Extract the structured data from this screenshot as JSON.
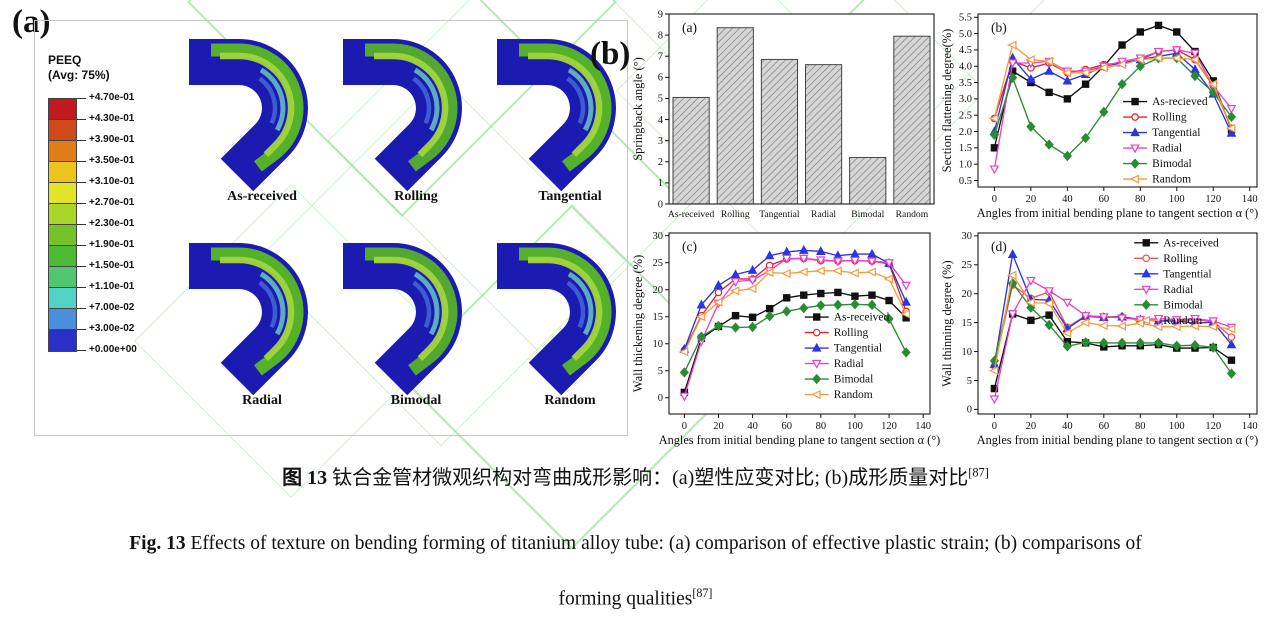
{
  "panel_a": {
    "label": "(a)",
    "peeq": {
      "title_line1": "PEEQ",
      "title_line2": "(Avg: 75%)",
      "tick_labels": [
        "+4.70e-01",
        "+4.30e-01",
        "+3.90e-01",
        "+3.50e-01",
        "+3.10e-01",
        "+2.70e-01",
        "+2.30e-01",
        "+1.90e-01",
        "+1.50e-01",
        "+1.10e-01",
        "+7.00e-02",
        "+3.00e-02",
        "+0.00e+00"
      ],
      "band_colors": [
        "#c01a20",
        "#cf4a18",
        "#e07d18",
        "#ecc51c",
        "#e2e428",
        "#a9d628",
        "#74c429",
        "#4cba33",
        "#52c66e",
        "#52d2c4",
        "#4b8fdc",
        "#2a2fc8"
      ]
    },
    "tubes": [
      "As-received",
      "Rolling",
      "Tangential",
      "Radial",
      "Bimodal",
      "Random"
    ],
    "tube_colors": {
      "body": "#1b1bb2",
      "band_outer": "#55b02a",
      "band_mid": "#a2d63c",
      "accent_cyan": "#6fd0c4",
      "accent_blue": "#4f7fe0"
    }
  },
  "panel_b": {
    "label": "(b)"
  },
  "captions": {
    "zh_bold": "图 13",
    "zh_rest": " 钛合金管材微观织构对弯曲成形影响：(a)塑性应变对比; (b)成形质量对比",
    "zh_sup": "[87]",
    "en_bold": "Fig. 13",
    "en_rest": " Effects of texture on bending forming of titanium alloy tube: (a) comparison of effective plastic strain; (b) comparisons of",
    "en_line2": "forming qualities",
    "en_sup": "[87]"
  },
  "chart_data": [
    {
      "id": "springback",
      "type": "bar",
      "panel_label": "(a)",
      "ylabel": "Springback angle (°)",
      "categories": [
        "As-received",
        "Rolling",
        "Tangential",
        "Radial",
        "Bimodal",
        "Random"
      ],
      "values": [
        5.05,
        8.35,
        6.85,
        6.6,
        2.2,
        7.95
      ],
      "ylim": [
        0,
        9
      ],
      "yticks": [
        0,
        1,
        2,
        3,
        4,
        5,
        6,
        7,
        8,
        9
      ],
      "ydec": 0,
      "bar_fill": "#d6d6d6",
      "hatch_color": "#7e7e7e",
      "legend_pos": null
    },
    {
      "id": "flattening",
      "type": "line",
      "panel_label": "(b)",
      "ylabel": "Section flattening degree(%)",
      "xlabel": "Angles from initial bending plane to tangent section α (°)",
      "x": [
        0,
        10,
        20,
        30,
        40,
        50,
        60,
        70,
        80,
        90,
        100,
        110,
        120,
        130
      ],
      "xlim": [
        -9,
        144
      ],
      "xticks": [
        0,
        20,
        40,
        60,
        80,
        100,
        120,
        140
      ],
      "ylim": [
        0.3,
        5.6
      ],
      "yticks": [
        0.5,
        1,
        1.5,
        2,
        2.5,
        3,
        3.5,
        4,
        4.5,
        5,
        5.5
      ],
      "ydec": 1,
      "grid": false,
      "legend_pos": {
        "x": 0.52,
        "y": 0.46
      },
      "series": [
        {
          "name": "As-recieved",
          "color": "#111111",
          "marker": "square",
          "filled": true,
          "values": [
            1.5,
            3.85,
            3.5,
            3.2,
            3.0,
            3.45,
            4.0,
            4.65,
            5.05,
            5.25,
            5.05,
            4.45,
            3.55,
            2.05
          ]
        },
        {
          "name": "Rolling",
          "color": "#e32225",
          "marker": "circle",
          "filled": false,
          "values": [
            2.4,
            4.15,
            3.95,
            4.1,
            3.8,
            3.9,
            4.05,
            4.1,
            4.2,
            4.45,
            4.5,
            4.2,
            3.4,
            2.1
          ]
        },
        {
          "name": "Tangential",
          "color": "#2b35e0",
          "marker": "tri-up",
          "filled": true,
          "values": [
            2.0,
            4.25,
            3.6,
            3.85,
            3.55,
            3.75,
            4.0,
            4.1,
            4.2,
            4.3,
            4.4,
            3.9,
            3.15,
            1.95
          ]
        },
        {
          "name": "Radial",
          "color": "#ee3ecc",
          "marker": "tri-down",
          "filled": false,
          "values": [
            0.85,
            4.1,
            4.1,
            4.15,
            3.85,
            3.85,
            4.0,
            4.15,
            4.25,
            4.45,
            4.5,
            4.4,
            3.4,
            2.7
          ]
        },
        {
          "name": "Bimodal",
          "color": "#2a8c32",
          "marker": "diamond",
          "filled": true,
          "values": [
            1.9,
            3.65,
            2.15,
            1.6,
            1.25,
            1.8,
            2.6,
            3.45,
            4.0,
            4.25,
            4.25,
            3.7,
            3.2,
            2.45
          ]
        },
        {
          "name": "Random",
          "color": "#f59a40",
          "marker": "tri-left",
          "filled": false,
          "values": [
            2.4,
            4.65,
            4.2,
            4.15,
            3.8,
            3.8,
            3.95,
            4.05,
            4.2,
            4.25,
            4.25,
            4.2,
            3.45,
            2.1
          ]
        }
      ]
    },
    {
      "id": "thickening",
      "type": "line",
      "panel_label": "(c)",
      "ylabel": "Wall thickening degree (%)",
      "xlabel": "Angles from initial bending plane to tangent section α (°)",
      "x": [
        0,
        10,
        20,
        30,
        40,
        50,
        60,
        70,
        80,
        90,
        100,
        110,
        120,
        130
      ],
      "xlim": [
        -9,
        144
      ],
      "xticks": [
        0,
        20,
        40,
        60,
        80,
        100,
        120,
        140
      ],
      "ylim": [
        -3,
        30.5
      ],
      "yticks": [
        0,
        5,
        10,
        15,
        20,
        25,
        30
      ],
      "ydec": 0,
      "grid": false,
      "legend_pos": {
        "x": 0.52,
        "y": 0.42
      },
      "series": [
        {
          "name": "As-received",
          "color": "#111111",
          "marker": "square",
          "filled": true,
          "values": [
            1.0,
            11.0,
            13.2,
            15.2,
            14.9,
            16.5,
            18.5,
            19.0,
            19.3,
            19.5,
            18.8,
            19.0,
            18.0,
            14.8
          ]
        },
        {
          "name": "Rolling",
          "color": "#e32225",
          "marker": "circle",
          "filled": false,
          "values": [
            8.8,
            15.2,
            19.5,
            22.0,
            22.0,
            24.5,
            25.7,
            25.8,
            25.4,
            25.3,
            25.4,
            25.3,
            24.8,
            16.0
          ]
        },
        {
          "name": "Tangential",
          "color": "#2b35e0",
          "marker": "tri-up",
          "filled": true,
          "values": [
            9.0,
            17.2,
            20.8,
            22.8,
            23.6,
            26.3,
            27.0,
            27.3,
            27.1,
            26.3,
            26.6,
            26.6,
            24.9,
            17.7
          ]
        },
        {
          "name": "Radial",
          "color": "#ee3ecc",
          "marker": "tri-down",
          "filled": false,
          "values": [
            0.3,
            10.5,
            17.5,
            21.5,
            21.8,
            23.5,
            25.8,
            25.8,
            25.5,
            25.3,
            25.4,
            25.3,
            25.0,
            20.8
          ]
        },
        {
          "name": "Bimodal",
          "color": "#2a8c32",
          "marker": "diamond",
          "filled": true,
          "values": [
            4.7,
            11.3,
            13.3,
            13.0,
            13.1,
            15.1,
            16.0,
            16.6,
            17.1,
            17.2,
            17.3,
            17.2,
            14.6,
            8.4
          ]
        },
        {
          "name": "Random",
          "color": "#f59a40",
          "marker": "tri-left",
          "filled": false,
          "values": [
            8.5,
            15.0,
            17.7,
            19.8,
            20.2,
            23.2,
            23.0,
            23.3,
            23.5,
            23.5,
            23.1,
            23.3,
            22.0,
            15.5
          ]
        }
      ]
    },
    {
      "id": "thinning",
      "type": "line",
      "panel_label": "(d)",
      "ylabel": "Wall thinning degree (%)",
      "xlabel": "Angles from initial bending plane to tangent section α (°)",
      "x": [
        0,
        10,
        20,
        30,
        40,
        50,
        60,
        70,
        80,
        90,
        100,
        110,
        120,
        130
      ],
      "xlim": [
        -9,
        144
      ],
      "xticks": [
        0,
        20,
        40,
        60,
        80,
        100,
        120,
        140
      ],
      "ylim": [
        -0.8,
        30.5
      ],
      "yticks": [
        0,
        5,
        10,
        15,
        20,
        25,
        30
      ],
      "ydec": 0,
      "grid": false,
      "legend_pos": {
        "x": 0.56,
        "y": 0.01
      },
      "series": [
        {
          "name": "As-received",
          "color": "#111111",
          "marker": "square",
          "filled": true,
          "values": [
            3.6,
            16.5,
            15.4,
            16.3,
            11.7,
            11.5,
            10.8,
            11.0,
            11.0,
            11.2,
            10.6,
            10.6,
            10.7,
            8.5
          ]
        },
        {
          "name": "Rolling",
          "color": "#e85555",
          "marker": "circle",
          "filled": false,
          "values": [
            7.5,
            21.5,
            19.2,
            20.3,
            14.2,
            16.2,
            16.0,
            16.0,
            15.5,
            15.3,
            15.3,
            15.5,
            15.2,
            12.5
          ]
        },
        {
          "name": "Tangential",
          "color": "#2b35e0",
          "marker": "tri-up",
          "filled": true,
          "values": [
            7.8,
            26.8,
            19.0,
            18.9,
            14.0,
            16.1,
            15.9,
            16.0,
            15.5,
            15.3,
            15.3,
            14.9,
            15.1,
            11.2
          ]
        },
        {
          "name": "Radial",
          "color": "#ee3ecc",
          "marker": "tri-down",
          "filled": false,
          "values": [
            1.8,
            16.5,
            22.3,
            20.5,
            18.5,
            16.2,
            16.0,
            15.8,
            15.5,
            15.7,
            15.5,
            15.7,
            15.3,
            14.2
          ]
        },
        {
          "name": "Bimodal",
          "color": "#2a8c32",
          "marker": "diamond",
          "filled": true,
          "values": [
            8.4,
            21.8,
            17.6,
            14.6,
            10.9,
            11.6,
            11.5,
            11.5,
            11.5,
            11.5,
            11.0,
            11.1,
            10.7,
            6.2
          ]
        },
        {
          "name": "Random",
          "color": "#f59a40",
          "marker": "tri-left",
          "filled": false,
          "values": [
            6.7,
            23.2,
            18.5,
            18.3,
            13.2,
            15.0,
            14.5,
            14.4,
            14.9,
            14.3,
            14.3,
            14.4,
            14.3,
            13.9
          ]
        }
      ]
    }
  ]
}
